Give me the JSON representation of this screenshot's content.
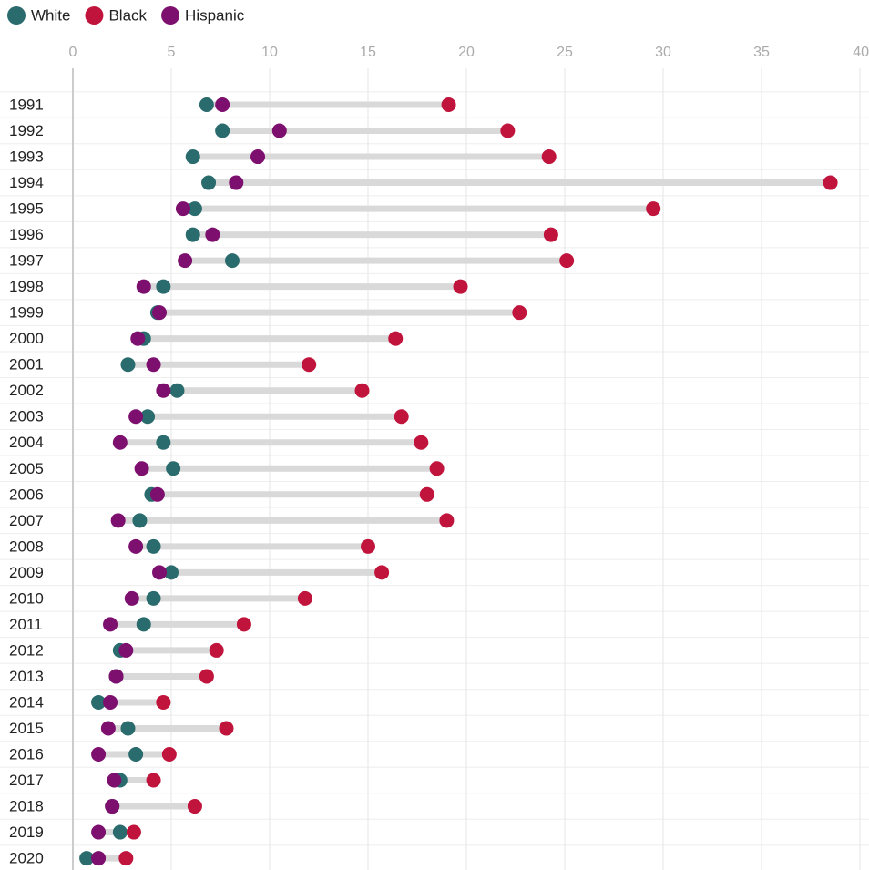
{
  "chart_data": {
    "type": "dot",
    "categories": [
      "1991",
      "1992",
      "1993",
      "1994",
      "1995",
      "1996",
      "1997",
      "1998",
      "1999",
      "2000",
      "2001",
      "2002",
      "2003",
      "2004",
      "2005",
      "2006",
      "2007",
      "2008",
      "2009",
      "2010",
      "2011",
      "2012",
      "2013",
      "2014",
      "2015",
      "2016",
      "2017",
      "2018",
      "2019",
      "2020"
    ],
    "series": [
      {
        "name": "White",
        "color": "#2a6b6e",
        "values": [
          6.8,
          7.6,
          6.1,
          6.9,
          6.2,
          6.1,
          8.1,
          4.6,
          4.3,
          3.6,
          2.8,
          5.3,
          3.8,
          4.6,
          5.1,
          4.0,
          3.4,
          4.1,
          5.0,
          4.1,
          3.6,
          2.4,
          2.2,
          1.3,
          2.8,
          3.2,
          2.4,
          2.0,
          2.4,
          0.7
        ]
      },
      {
        "name": "Black",
        "color": "#c0143c",
        "values": [
          19.1,
          22.1,
          24.2,
          38.5,
          29.5,
          24.3,
          25.1,
          19.7,
          22.7,
          16.4,
          12.0,
          14.7,
          16.7,
          17.7,
          18.5,
          18.0,
          19.0,
          15.0,
          15.7,
          11.8,
          8.7,
          7.3,
          6.8,
          4.6,
          7.8,
          4.9,
          4.1,
          6.2,
          3.1,
          2.7
        ]
      },
      {
        "name": "Hispanic",
        "color": "#7d0f6e",
        "values": [
          7.6,
          10.5,
          9.4,
          8.3,
          5.6,
          7.1,
          5.7,
          3.6,
          4.4,
          3.3,
          4.1,
          4.6,
          3.2,
          2.4,
          3.5,
          4.3,
          2.3,
          3.2,
          4.4,
          3.0,
          1.9,
          2.7,
          2.2,
          1.9,
          1.8,
          1.3,
          2.1,
          2.0,
          1.3,
          1.3
        ]
      }
    ],
    "xlim": [
      0,
      40
    ],
    "xticks": [
      0,
      5,
      10,
      15,
      20,
      25,
      30,
      35,
      40
    ],
    "grid": true,
    "legend": "top-left"
  }
}
